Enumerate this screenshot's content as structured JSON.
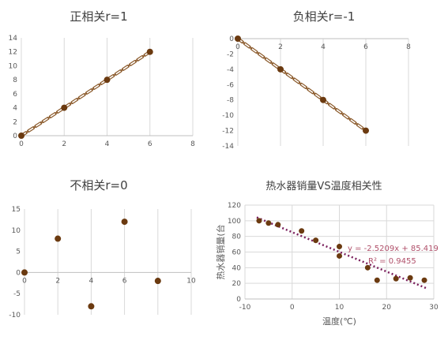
{
  "chart_data": [
    {
      "type": "scatter",
      "title": "正相关r=1",
      "x": [
        0,
        2,
        4,
        6
      ],
      "y": [
        0,
        4,
        8,
        12
      ],
      "xlim": [
        0,
        8
      ],
      "ylim": [
        0,
        14
      ],
      "xticks": [
        0,
        2,
        4,
        6,
        8
      ],
      "yticks": [
        0,
        2,
        4,
        6,
        8,
        10,
        12,
        14
      ],
      "grid": "vertical",
      "connect_dashed": true,
      "point_color": "#6b3a10",
      "line_color": "#8b5a2b"
    },
    {
      "type": "scatter",
      "title": "负相关r=-1",
      "x": [
        0,
        2,
        4,
        6
      ],
      "y": [
        0,
        -4,
        -8,
        -12
      ],
      "xlim": [
        0,
        8
      ],
      "ylim": [
        -14,
        0
      ],
      "xticks": [
        0,
        2,
        4,
        6,
        8
      ],
      "yticks": [
        0,
        -2,
        -4,
        -6,
        -8,
        -10,
        -12,
        -14
      ],
      "grid": "vertical",
      "connect_dashed": true,
      "point_color": "#6b3a10",
      "line_color": "#8b5a2b"
    },
    {
      "type": "scatter",
      "title": "不相关r=0",
      "x": [
        0,
        2,
        4,
        6,
        8
      ],
      "y": [
        0,
        8,
        -8,
        12,
        -2
      ],
      "xlim": [
        0,
        10
      ],
      "ylim": [
        -10,
        15
      ],
      "xticks": [
        0,
        2,
        4,
        6,
        8,
        10
      ],
      "yticks": [
        15,
        10,
        5,
        0,
        -5,
        -10
      ],
      "grid": "vertical",
      "connect_dashed": false,
      "point_color": "#6b3a10"
    },
    {
      "type": "scatter",
      "title": "热水器销量VS温度相关性",
      "xlabel": "温度(℃)",
      "ylabel": "热水器销量(台",
      "x": [
        -7,
        -5,
        -3,
        2,
        5,
        10,
        10,
        16,
        18,
        22,
        25,
        28
      ],
      "y": [
        100,
        97,
        95,
        87,
        75,
        67,
        55,
        40,
        24,
        26,
        27,
        24
      ],
      "xlim": [
        -10,
        30
      ],
      "ylim": [
        0,
        120
      ],
      "xticks": [
        -10,
        0,
        10,
        20,
        30
      ],
      "yticks": [
        0,
        20,
        40,
        60,
        80,
        100,
        120
      ],
      "grid": "both",
      "trendline": {
        "slope": -2.5209,
        "intercept": 85.419
      },
      "equation": "y = -2.5209x + 85.419",
      "r_squared": "R² = 0.9455",
      "point_color": "#6b3a10",
      "trend_color": "#7a1f5c"
    }
  ]
}
